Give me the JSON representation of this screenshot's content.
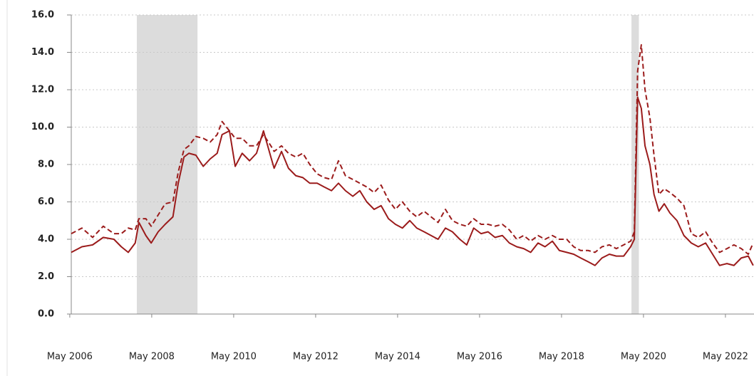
{
  "chart_data": {
    "type": "line",
    "x": [
      2006.37,
      2006.63,
      2006.89,
      2007.15,
      2007.41,
      2007.59,
      2007.76,
      2007.93,
      2008.02,
      2008.19,
      2008.32,
      2008.49,
      2008.66,
      2008.85,
      2008.98,
      2009.12,
      2009.24,
      2009.41,
      2009.59,
      2009.76,
      2009.93,
      2010.05,
      2010.23,
      2010.37,
      2010.54,
      2010.72,
      2010.89,
      2011.06,
      2011.24,
      2011.32,
      2011.5,
      2011.67,
      2011.85,
      2012.02,
      2012.19,
      2012.37,
      2012.54,
      2012.72,
      2012.89,
      2013.06,
      2013.24,
      2013.41,
      2013.58,
      2013.76,
      2013.93,
      2014.11,
      2014.28,
      2014.45,
      2014.63,
      2014.8,
      2014.98,
      2015.15,
      2015.32,
      2015.5,
      2015.67,
      2015.85,
      2016.02,
      2016.19,
      2016.37,
      2016.54,
      2016.71,
      2016.89,
      2017.06,
      2017.24,
      2017.41,
      2017.58,
      2017.76,
      2017.93,
      2018.11,
      2018.28,
      2018.46,
      2018.63,
      2018.8,
      2018.98,
      2019.15,
      2019.32,
      2019.5,
      2019.67,
      2019.85,
      2020.02,
      2020.11,
      2020.19,
      2020.28,
      2020.37,
      2020.49,
      2020.59,
      2020.71,
      2020.84,
      2020.98,
      2021.15,
      2021.32,
      2021.5,
      2021.67,
      2021.85,
      2022.02,
      2022.19,
      2022.37,
      2022.54,
      2022.72,
      2022.89,
      2023.01
    ],
    "series": [
      {
        "color": "#9b1b1b",
        "dash": false,
        "values": [
          3.3,
          3.6,
          3.7,
          4.1,
          4.0,
          3.6,
          3.3,
          3.8,
          4.9,
          4.2,
          3.8,
          4.4,
          4.8,
          5.2,
          7.0,
          8.4,
          8.6,
          8.5,
          7.9,
          8.3,
          8.6,
          9.6,
          9.8,
          7.9,
          8.6,
          8.2,
          8.6,
          9.8,
          8.4,
          7.8,
          8.7,
          7.8,
          7.4,
          7.3,
          7.0,
          7.0,
          6.8,
          6.6,
          7.0,
          6.6,
          6.3,
          6.6,
          6.0,
          5.6,
          5.8,
          5.1,
          4.8,
          4.6,
          5.0,
          4.6,
          4.4,
          4.2,
          4.0,
          4.6,
          4.4,
          4.0,
          3.7,
          4.6,
          4.3,
          4.4,
          4.1,
          4.2,
          3.8,
          3.6,
          3.5,
          3.3,
          3.8,
          3.6,
          3.9,
          3.4,
          3.3,
          3.2,
          3.0,
          2.8,
          2.6,
          3.0,
          3.2,
          3.1,
          3.1,
          3.6,
          4.0,
          11.6,
          11.0,
          9.0,
          8.0,
          6.4,
          5.5,
          5.9,
          5.4,
          5.0,
          4.2,
          3.8,
          3.6,
          3.8,
          3.2,
          2.6,
          2.7,
          2.6,
          3.0,
          3.1,
          2.6
        ]
      },
      {
        "color": "#9b1b1b",
        "dash": true,
        "values": [
          4.3,
          4.6,
          4.1,
          4.7,
          4.3,
          4.3,
          4.6,
          4.5,
          5.1,
          5.1,
          4.7,
          5.3,
          5.9,
          6.0,
          7.6,
          8.8,
          9.0,
          9.5,
          9.4,
          9.2,
          9.6,
          10.3,
          9.8,
          9.4,
          9.4,
          9.0,
          9.0,
          9.6,
          9.0,
          8.7,
          9.0,
          8.6,
          8.4,
          8.6,
          8.0,
          7.5,
          7.3,
          7.2,
          8.2,
          7.4,
          7.2,
          7.0,
          6.8,
          6.5,
          6.9,
          6.1,
          5.6,
          6.0,
          5.5,
          5.2,
          5.5,
          5.2,
          4.9,
          5.6,
          5.0,
          4.8,
          4.7,
          5.1,
          4.8,
          4.8,
          4.7,
          4.8,
          4.5,
          4.0,
          4.2,
          3.9,
          4.2,
          4.0,
          4.2,
          4.0,
          4.0,
          3.6,
          3.4,
          3.4,
          3.3,
          3.6,
          3.7,
          3.5,
          3.7,
          3.9,
          4.4,
          13.0,
          14.4,
          12.0,
          10.5,
          8.5,
          6.4,
          6.7,
          6.5,
          6.2,
          5.8,
          4.3,
          4.1,
          4.4,
          3.8,
          3.3,
          3.5,
          3.7,
          3.5,
          3.2,
          3.8
        ]
      }
    ],
    "shaded_ranges": [
      [
        2007.97,
        2009.45
      ],
      [
        2020.04,
        2020.22
      ]
    ],
    "shade_color": "#dcdcdc",
    "xlim": [
      2006.3,
      2023.03
    ],
    "xticks": [
      {
        "value": 2006.333,
        "label": "May 2006"
      },
      {
        "value": 2008.333,
        "label": "May 2008"
      },
      {
        "value": 2010.333,
        "label": "May 2010"
      },
      {
        "value": 2012.333,
        "label": "May 2012"
      },
      {
        "value": 2014.333,
        "label": "May 2014"
      },
      {
        "value": 2016.333,
        "label": "May 2016"
      },
      {
        "value": 2018.333,
        "label": "May 2018"
      },
      {
        "value": 2020.333,
        "label": "May 2020"
      },
      {
        "value": 2022.333,
        "label": "May 2022"
      }
    ],
    "ylim": [
      0,
      16
    ],
    "yticks": [
      {
        "value": 0,
        "label": "0.0"
      },
      {
        "value": 2,
        "label": "2.0"
      },
      {
        "value": 4,
        "label": "4.0"
      },
      {
        "value": 6,
        "label": "6.0"
      },
      {
        "value": 8,
        "label": "8.0"
      },
      {
        "value": 10,
        "label": "10.0"
      },
      {
        "value": 12,
        "label": "12.0"
      },
      {
        "value": 14,
        "label": "14.0"
      },
      {
        "value": 16,
        "label": "16.0"
      }
    ],
    "grid": true
  }
}
